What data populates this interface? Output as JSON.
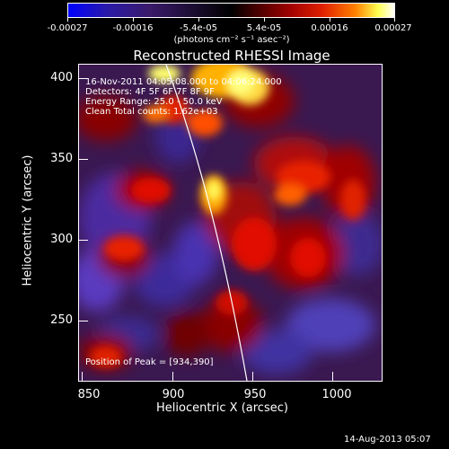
{
  "colorbar": {
    "tick_labels": [
      "-0.00027",
      "-0.00016",
      "-5.4e-05",
      "5.4e-05",
      "0.00016",
      "0.00027"
    ],
    "unit_label": "(photons cm⁻² s⁻¹ asec⁻²)",
    "colors": [
      "#0000ff",
      "#5a2bd8",
      "#000000",
      "#7a0000",
      "#e00000",
      "#ff7a00",
      "#ffff40",
      "#ffffff"
    ]
  },
  "title": "Reconstructed RHESSI Image",
  "info": {
    "line1": "16-Nov-2011 04:05:08.000 to 04:06:24.000",
    "line2": "Detectors: 4F 5F 6F 7F 8F 9F",
    "line3": "Energy Range: 25.0 - 50.0 keV",
    "line4": "Clean    Total counts: 1.62e+03",
    "peak": "Position of Peak = [934,390]"
  },
  "axes": {
    "xlabel": "Heliocentric X (arcsec)",
    "ylabel": "Heliocentric Y (arcsec)",
    "x_ticks": [
      "850",
      "900",
      "950",
      "1000"
    ],
    "y_ticks": [
      "400",
      "350",
      "300",
      "250"
    ],
    "xlim": [
      835,
      1025
    ],
    "ylim": [
      212,
      408
    ]
  },
  "footer": {
    "timestamp": "14-Aug-2013 05:07"
  }
}
